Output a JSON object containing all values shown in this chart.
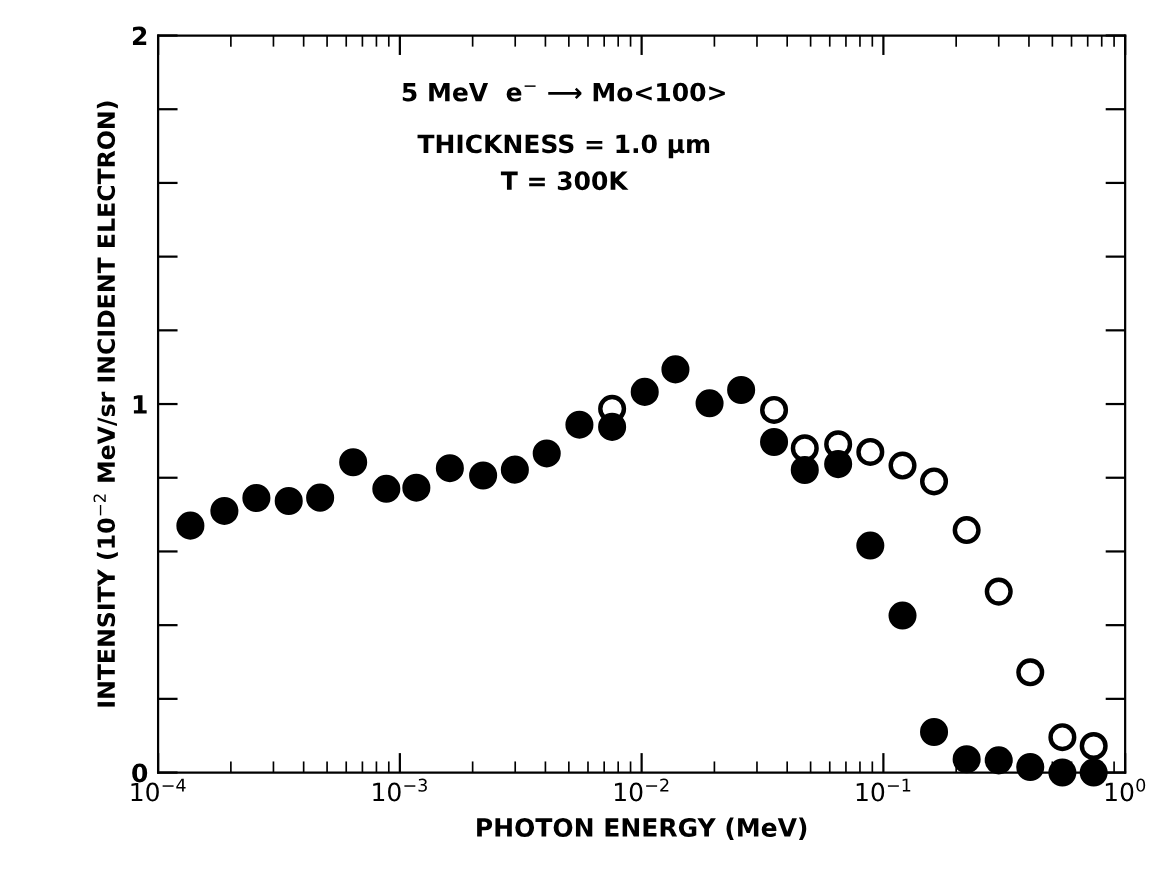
{
  "chart_data": {
    "type": "scatter",
    "xlabel": "PHOTON ENERGY (MeV)",
    "ylabel": "INTENSITY (10$^{−2}$ MeV/sr INCIDENT ELECTRON)",
    "annotations": [
      "5 MeV  e$^{−}$ ⟶ Mo<100>",
      "THICKNESS = 1.0 μm",
      "T = 300K"
    ],
    "log": "x",
    "marker": "circle",
    "grid": false,
    "x": [
      0.000136,
      0.000188,
      0.000255,
      0.000347,
      0.000468,
      0.000641,
      0.000879,
      0.00117,
      0.00161,
      0.00221,
      0.00299,
      0.00405,
      0.00553,
      0.00755,
      0.0103,
      0.0138,
      0.0191,
      0.0258,
      0.0353,
      0.0473,
      0.065,
      0.0883,
      0.12,
      0.162,
      0.221,
      0.3,
      0.405,
      0.55,
      0.741
    ],
    "series": [
      {
        "color": "#000000",
        "values": [
          0.67,
          0.71,
          0.745,
          0.737,
          0.746,
          0.842,
          0.77,
          0.773,
          0.826,
          0.806,
          0.822,
          0.866,
          0.944,
          0.938,
          1.033,
          1.094,
          1.002,
          1.038,
          0.897,
          0.821,
          0.837,
          0.616,
          0.426,
          0.11,
          0.036,
          0.033,
          0.015,
          0.0,
          0.0
        ]
      },
      {
        "color": "#000000",
        "values": [
          null,
          null,
          null,
          null,
          null,
          null,
          null,
          null,
          null,
          null,
          null,
          null,
          null,
          0.987,
          null,
          null,
          null,
          null,
          0.984,
          0.88,
          0.891,
          0.87,
          0.833,
          0.79,
          0.658,
          0.491,
          0.272,
          0.096,
          0.072
        ]
      }
    ],
    "xlim": [
      0.0001,
      1
    ],
    "xticks": [
      {
        "value": 0.0001,
        "label": "10$^{−4}$"
      },
      {
        "value": 0.001,
        "label": "10$^{−3}$"
      },
      {
        "value": 0.01,
        "label": "10$^{−2}$"
      },
      {
        "value": 0.1,
        "label": "10$^{−1}$"
      },
      {
        "value": 1,
        "label": "10$^{0}$"
      }
    ],
    "ylim": [
      0,
      2
    ],
    "yticks": [
      0,
      {
        "value": 0.2,
        "label": null
      },
      {
        "value": 0.4,
        "label": null
      },
      {
        "value": 0.6,
        "label": null
      },
      {
        "value": 0.8,
        "label": null
      },
      1,
      {
        "value": 1.2,
        "label": null
      },
      {
        "value": 1.4,
        "label": null
      },
      {
        "value": 1.6,
        "label": null
      },
      {
        "value": 1.8,
        "label": null
      },
      2
    ]
  }
}
